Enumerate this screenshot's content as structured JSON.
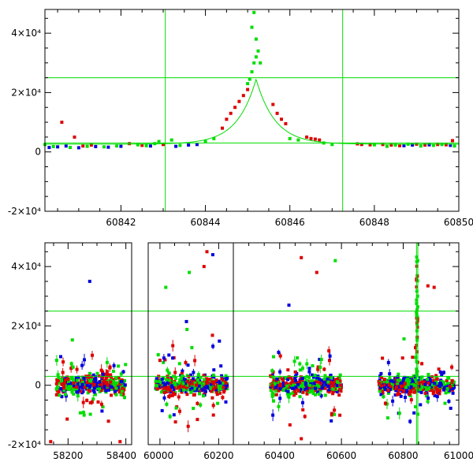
{
  "chart_data": [
    {
      "type": "scatter",
      "name": "zoom-panel",
      "title": "",
      "xlabel": "",
      "ylabel": "",
      "xlim": [
        60840.2,
        60850.0
      ],
      "ylim": [
        -20000,
        48000
      ],
      "x_ticks": [
        60842,
        60844,
        60846,
        60848,
        60850
      ],
      "x_tick_labels": [
        "60842",
        "60844",
        "60846",
        "60848",
        "60850"
      ],
      "y_ticks": [
        -20000,
        0,
        20000,
        40000
      ],
      "y_tick_labels": [
        "-2×10⁴",
        "0",
        "2×10⁴",
        "4×10⁴"
      ],
      "hlines": [
        3000,
        25000
      ],
      "vlines": [
        60843.05,
        60847.25
      ],
      "model_curve": {
        "color": "#00dd00",
        "peak_x": 60845.2,
        "peak_y": 24500,
        "baseline": 2600,
        "width": 0.45
      },
      "series": [
        {
          "name": "red",
          "color": "#dd0000",
          "points": [
            [
              60840.6,
              10000
            ],
            [
              60840.9,
              5000
            ],
            [
              60841.1,
              2000
            ],
            [
              60841.3,
              2300
            ],
            [
              60842.2,
              2800
            ],
            [
              60842.5,
              2200
            ],
            [
              60843.0,
              2500
            ],
            [
              60844.4,
              8000
            ],
            [
              60844.5,
              11000
            ],
            [
              60844.6,
              13000
            ],
            [
              60844.7,
              15000
            ],
            [
              60844.8,
              17000
            ],
            [
              60844.9,
              19000
            ],
            [
              60845.0,
              21000
            ],
            [
              60845.6,
              16000
            ],
            [
              60845.7,
              13000
            ],
            [
              60845.8,
              11000
            ],
            [
              60845.9,
              9500
            ],
            [
              60846.4,
              5000
            ],
            [
              60846.5,
              4500
            ],
            [
              60846.6,
              4300
            ],
            [
              60846.7,
              4000
            ],
            [
              60847.6,
              2700
            ],
            [
              60847.7,
              2500
            ],
            [
              60847.9,
              2400
            ],
            [
              60848.2,
              2500
            ],
            [
              60848.4,
              2300
            ],
            [
              60848.6,
              2100
            ],
            [
              60849.0,
              2600
            ],
            [
              60849.2,
              2300
            ],
            [
              60849.5,
              2500
            ],
            [
              60849.7,
              2400
            ],
            [
              60849.85,
              3800
            ]
          ]
        },
        {
          "name": "blue",
          "color": "#0000dd",
          "points": [
            [
              60840.3,
              1500
            ],
            [
              60840.5,
              1700
            ],
            [
              60840.7,
              2000
            ],
            [
              60841.0,
              1400
            ],
            [
              60841.4,
              1800
            ],
            [
              60841.7,
              1600
            ],
            [
              60842.0,
              1900
            ],
            [
              60842.7,
              2000
            ],
            [
              60843.3,
              1900
            ],
            [
              60843.6,
              2300
            ],
            [
              60843.8,
              2500
            ],
            [
              60848.7,
              2100
            ],
            [
              60848.9,
              2300
            ],
            [
              60849.3,
              2400
            ],
            [
              60849.8,
              2200
            ]
          ]
        },
        {
          "name": "green",
          "color": "#00dd00",
          "points": [
            [
              60840.2,
              2500
            ],
            [
              60840.4,
              1800
            ],
            [
              60840.8,
              1500
            ],
            [
              60841.2,
              1900
            ],
            [
              60841.6,
              1700
            ],
            [
              60841.9,
              2000
            ],
            [
              60842.4,
              2400
            ],
            [
              60842.6,
              2100
            ],
            [
              60842.8,
              2800
            ],
            [
              60842.9,
              3500
            ],
            [
              60843.2,
              4000
            ],
            [
              60843.4,
              2200
            ],
            [
              60844.0,
              3500
            ],
            [
              60844.2,
              4500
            ],
            [
              60845.0,
              23000
            ],
            [
              60845.05,
              24500
            ],
            [
              60845.1,
              27000
            ],
            [
              60845.15,
              30000
            ],
            [
              60845.2,
              32000
            ],
            [
              60845.25,
              34000
            ],
            [
              60845.3,
              30000
            ],
            [
              60845.1,
              42000
            ],
            [
              60845.15,
              47000
            ],
            [
              60845.2,
              38000
            ],
            [
              60846.0,
              4500
            ],
            [
              60846.2,
              4000
            ],
            [
              60846.8,
              3000
            ],
            [
              60847.0,
              2500
            ],
            [
              60848.0,
              2400
            ],
            [
              60848.3,
              1900
            ],
            [
              60848.5,
              2300
            ],
            [
              60848.8,
              2600
            ],
            [
              60849.1,
              2000
            ],
            [
              60849.4,
              2200
            ],
            [
              60849.6,
              2500
            ],
            [
              60849.9,
              2000
            ]
          ]
        }
      ]
    },
    {
      "type": "scatter",
      "name": "overview-panel",
      "title": "",
      "xlabel": "",
      "ylabel": "",
      "segments": [
        {
          "xlim": [
            58120,
            58420
          ],
          "x_ticks": [
            58200,
            58400
          ],
          "x_tick_labels": [
            "58200",
            "58400"
          ]
        },
        {
          "xlim": [
            59960,
            60250
          ],
          "x_ticks": [
            60000,
            60200
          ],
          "x_tick_labels": [
            "60000",
            "60200"
          ]
        },
        {
          "xlim": [
            60250,
            60980
          ],
          "x_ticks": [
            60400,
            60600,
            60800,
            61000
          ],
          "x_tick_labels": [
            "60400",
            "60600",
            "60800",
            "61000"
          ]
        }
      ],
      "ylim": [
        -20000,
        48000
      ],
      "y_ticks": [
        -20000,
        0,
        20000,
        40000
      ],
      "y_tick_labels": [
        "-2×10⁴",
        "0",
        "2×10⁴",
        "4×10⁴"
      ],
      "hlines": [
        3000,
        25000
      ],
      "vlines": [
        60843.05,
        60847.25
      ],
      "seasons": [
        {
          "start": 58160,
          "end": 58400
        },
        {
          "start": 59985,
          "end": 60230
        },
        {
          "start": 60370,
          "end": 60600
        },
        {
          "start": 60720,
          "end": 60965
        }
      ],
      "outliers": [
        {
          "x": 58275,
          "y": 35000,
          "color": "#0000dd"
        },
        {
          "x": 58140,
          "y": -19000,
          "color": "#dd0000"
        },
        {
          "x": 58380,
          "y": -19000,
          "color": "#dd0000"
        },
        {
          "x": 60160,
          "y": 45000,
          "color": "#dd0000"
        },
        {
          "x": 60180,
          "y": 44000,
          "color": "#0000dd"
        },
        {
          "x": 60150,
          "y": 40000,
          "color": "#dd0000"
        },
        {
          "x": 60100,
          "y": 38000,
          "color": "#00dd00"
        },
        {
          "x": 60020,
          "y": 33000,
          "color": "#00dd00"
        },
        {
          "x": 60470,
          "y": 43000,
          "color": "#dd0000"
        },
        {
          "x": 60580,
          "y": 42000,
          "color": "#00dd00"
        },
        {
          "x": 60520,
          "y": 38000,
          "color": "#dd0000"
        },
        {
          "x": 60430,
          "y": 27000,
          "color": "#0000dd"
        },
        {
          "x": 60900,
          "y": 33000,
          "color": "#dd0000"
        },
        {
          "x": 60880,
          "y": 33500,
          "color": "#dd0000"
        },
        {
          "x": 60470,
          "y": -18000,
          "color": "#dd0000"
        },
        {
          "x": 60750,
          "y": -11000,
          "color": "#00dd00"
        }
      ]
    }
  ]
}
